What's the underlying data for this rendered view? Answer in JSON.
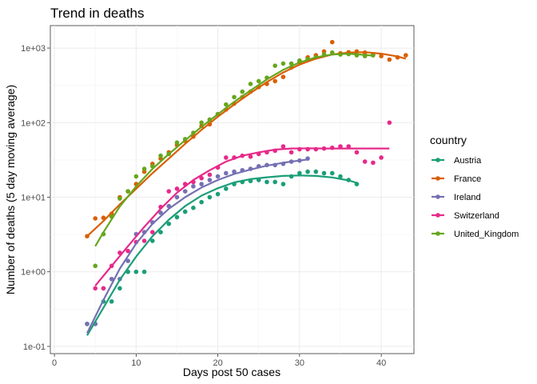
{
  "chart_data": {
    "type": "scatter",
    "title": "Trend in deaths",
    "xlabel": "Days post 50 cases",
    "ylabel": "Number of deaths (5 day moving average)",
    "xlim": [
      -0.5,
      44
    ],
    "ylim": [
      0.08,
      2000
    ],
    "y_scale": "log10",
    "x_ticks": [
      0,
      10,
      20,
      30,
      40
    ],
    "x_tick_labels": [
      "0",
      "10",
      "20",
      "30",
      "40"
    ],
    "y_ticks": [
      0.1,
      1,
      10,
      100,
      1000
    ],
    "y_tick_labels": [
      "1e-01",
      "1e+00",
      "1e+01",
      "1e+02",
      "1e+03"
    ],
    "grid": true,
    "legend_title": "country",
    "legend_position": "right",
    "series": [
      {
        "name": "Austria",
        "color": "#1b9e77",
        "points": [
          [
            4,
            0.2
          ],
          [
            5,
            0.2
          ],
          [
            6,
            0.4
          ],
          [
            7,
            0.4
          ],
          [
            8,
            0.6
          ],
          [
            9,
            1.0
          ],
          [
            10,
            1.0
          ],
          [
            11,
            1.0
          ],
          [
            12,
            2.6
          ],
          [
            13,
            3.4
          ],
          [
            14,
            4.4
          ],
          [
            15,
            5.4
          ],
          [
            16,
            6.4
          ],
          [
            17,
            7.2
          ],
          [
            18,
            8.6
          ],
          [
            19,
            10
          ],
          [
            20,
            11
          ],
          [
            21,
            13
          ],
          [
            22,
            15
          ],
          [
            23,
            16
          ],
          [
            24,
            16.5
          ],
          [
            25,
            17
          ],
          [
            26,
            16
          ],
          [
            27,
            16
          ],
          [
            28,
            15
          ],
          [
            29,
            19
          ],
          [
            30,
            21
          ],
          [
            31,
            22
          ],
          [
            32,
            22
          ],
          [
            33,
            21
          ],
          [
            34,
            21
          ],
          [
            35,
            19
          ],
          [
            36,
            17
          ],
          [
            37,
            15
          ]
        ],
        "trend": [
          [
            4,
            0.14
          ],
          [
            6,
            0.33
          ],
          [
            8,
            0.78
          ],
          [
            10,
            1.6
          ],
          [
            12,
            3.0
          ],
          [
            14,
            5.0
          ],
          [
            16,
            7.6
          ],
          [
            18,
            10.5
          ],
          [
            20,
            13.2
          ],
          [
            22,
            15.8
          ],
          [
            24,
            17.5
          ],
          [
            26,
            18.5
          ],
          [
            28,
            19.3
          ],
          [
            30,
            19.6
          ],
          [
            32,
            19.3
          ],
          [
            34,
            18.4
          ],
          [
            36,
            16.8
          ],
          [
            37,
            15.6
          ]
        ]
      },
      {
        "name": "France",
        "color": "#d95f02",
        "points": [
          [
            4,
            3.0
          ],
          [
            5,
            5.2
          ],
          [
            6,
            5.3
          ],
          [
            7,
            6.0
          ],
          [
            8,
            10
          ],
          [
            9,
            12
          ],
          [
            10,
            15
          ],
          [
            11,
            22
          ],
          [
            12,
            28
          ],
          [
            13,
            33
          ],
          [
            14,
            40
          ],
          [
            15,
            50
          ],
          [
            16,
            57
          ],
          [
            17,
            65
          ],
          [
            18,
            90
          ],
          [
            19,
            95
          ],
          [
            20,
            130
          ],
          [
            21,
            150
          ],
          [
            22,
            180
          ],
          [
            23,
            220
          ],
          [
            24,
            260
          ],
          [
            25,
            300
          ],
          [
            26,
            330
          ],
          [
            27,
            360
          ],
          [
            28,
            410
          ],
          [
            29,
            550
          ],
          [
            30,
            650
          ],
          [
            31,
            750
          ],
          [
            32,
            800
          ],
          [
            33,
            900
          ],
          [
            34,
            1200
          ],
          [
            35,
            850
          ],
          [
            36,
            880
          ],
          [
            37,
            900
          ],
          [
            38,
            870
          ],
          [
            39,
            820
          ],
          [
            40,
            780
          ],
          [
            41,
            700
          ],
          [
            42,
            750
          ],
          [
            43,
            800
          ]
        ],
        "trend": [
          [
            4,
            3.0
          ],
          [
            6,
            4.8
          ],
          [
            8,
            8.0
          ],
          [
            10,
            13
          ],
          [
            12,
            21
          ],
          [
            14,
            33
          ],
          [
            16,
            52
          ],
          [
            18,
            80
          ],
          [
            20,
            120
          ],
          [
            22,
            175
          ],
          [
            24,
            250
          ],
          [
            26,
            350
          ],
          [
            28,
            470
          ],
          [
            30,
            600
          ],
          [
            32,
            720
          ],
          [
            34,
            820
          ],
          [
            36,
            870
          ],
          [
            38,
            880
          ],
          [
            40,
            840
          ],
          [
            42,
            770
          ],
          [
            43,
            720
          ]
        ]
      },
      {
        "name": "Ireland",
        "color": "#7570b3",
        "points": [
          [
            4,
            0.2
          ],
          [
            5,
            0.2
          ],
          [
            6,
            0.6
          ],
          [
            7,
            0.8
          ],
          [
            8,
            0.8
          ],
          [
            9,
            1.4
          ],
          [
            10,
            3.2
          ],
          [
            11,
            3.4
          ],
          [
            12,
            4.6
          ],
          [
            13,
            6.2
          ],
          [
            14,
            7.6
          ],
          [
            15,
            10
          ],
          [
            16,
            12
          ],
          [
            17,
            14
          ],
          [
            18,
            15
          ],
          [
            19,
            17
          ],
          [
            20,
            19
          ],
          [
            21,
            21
          ],
          [
            22,
            22
          ],
          [
            23,
            23
          ],
          [
            24,
            24
          ],
          [
            25,
            26
          ],
          [
            26,
            27
          ],
          [
            27,
            27
          ],
          [
            28,
            28
          ],
          [
            29,
            30
          ],
          [
            30,
            31
          ],
          [
            31,
            33
          ]
        ],
        "trend": [
          [
            4,
            0.15
          ],
          [
            6,
            0.42
          ],
          [
            8,
            1.1
          ],
          [
            10,
            2.4
          ],
          [
            12,
            4.4
          ],
          [
            14,
            7.0
          ],
          [
            16,
            10
          ],
          [
            18,
            13.5
          ],
          [
            20,
            17
          ],
          [
            22,
            20.5
          ],
          [
            24,
            23.5
          ],
          [
            26,
            26.5
          ],
          [
            28,
            29
          ],
          [
            30,
            31
          ],
          [
            31,
            32
          ]
        ]
      },
      {
        "name": "Switzerland",
        "color": "#e7298a",
        "points": [
          [
            5,
            0.6
          ],
          [
            6,
            0.6
          ],
          [
            7,
            1.2
          ],
          [
            8,
            1.8
          ],
          [
            9,
            1.9
          ],
          [
            10,
            2.5
          ],
          [
            11,
            2.6
          ],
          [
            12,
            3.4
          ],
          [
            13,
            7.4
          ],
          [
            14,
            12
          ],
          [
            15,
            13
          ],
          [
            16,
            15
          ],
          [
            17,
            16
          ],
          [
            18,
            18
          ],
          [
            19,
            20
          ],
          [
            20,
            25
          ],
          [
            21,
            34
          ],
          [
            22,
            34
          ],
          [
            23,
            36
          ],
          [
            24,
            35
          ],
          [
            25,
            38
          ],
          [
            26,
            40
          ],
          [
            27,
            42
          ],
          [
            28,
            48
          ],
          [
            29,
            40
          ],
          [
            30,
            44
          ],
          [
            31,
            44
          ],
          [
            32,
            44
          ],
          [
            33,
            45
          ],
          [
            34,
            46
          ],
          [
            35,
            48
          ],
          [
            36,
            48
          ],
          [
            37,
            40
          ],
          [
            38,
            30
          ],
          [
            39,
            29
          ],
          [
            40,
            34
          ],
          [
            41,
            100
          ]
        ],
        "trend": [
          [
            5,
            0.65
          ],
          [
            7,
            1.2
          ],
          [
            9,
            2.2
          ],
          [
            11,
            4.0
          ],
          [
            13,
            7.0
          ],
          [
            15,
            11.5
          ],
          [
            17,
            17
          ],
          [
            19,
            23
          ],
          [
            21,
            30
          ],
          [
            23,
            36
          ],
          [
            25,
            40
          ],
          [
            27,
            43.5
          ],
          [
            29,
            45
          ],
          [
            31,
            45.2
          ],
          [
            33,
            45
          ],
          [
            35,
            45
          ],
          [
            37,
            45
          ],
          [
            39,
            45
          ],
          [
            41,
            45
          ]
        ]
      },
      {
        "name": "United_Kingdom",
        "color": "#66a61e",
        "points": [
          [
            5,
            1.2
          ],
          [
            6,
            3.2
          ],
          [
            7,
            5.5
          ],
          [
            8,
            9.6
          ],
          [
            9,
            12
          ],
          [
            10,
            19
          ],
          [
            11,
            24
          ],
          [
            12,
            26
          ],
          [
            13,
            36
          ],
          [
            14,
            38
          ],
          [
            15,
            54
          ],
          [
            16,
            60
          ],
          [
            17,
            73
          ],
          [
            18,
            100
          ],
          [
            19,
            110
          ],
          [
            20,
            130
          ],
          [
            21,
            175
          ],
          [
            22,
            220
          ],
          [
            23,
            260
          ],
          [
            24,
            330
          ],
          [
            25,
            360
          ],
          [
            26,
            400
          ],
          [
            27,
            580
          ],
          [
            28,
            620
          ],
          [
            29,
            620
          ],
          [
            30,
            680
          ],
          [
            31,
            710
          ],
          [
            32,
            750
          ],
          [
            33,
            820
          ],
          [
            34,
            870
          ],
          [
            35,
            820
          ],
          [
            36,
            830
          ],
          [
            37,
            800
          ],
          [
            38,
            780
          ],
          [
            39,
            800
          ]
        ],
        "trend": [
          [
            5,
            2.2
          ],
          [
            6,
            3.4
          ],
          [
            8,
            7.5
          ],
          [
            10,
            14
          ],
          [
            12,
            24
          ],
          [
            14,
            38
          ],
          [
            16,
            58
          ],
          [
            18,
            88
          ],
          [
            20,
            130
          ],
          [
            22,
            190
          ],
          [
            24,
            270
          ],
          [
            26,
            380
          ],
          [
            28,
            510
          ],
          [
            30,
            640
          ],
          [
            32,
            750
          ],
          [
            34,
            820
          ],
          [
            36,
            840
          ],
          [
            38,
            810
          ],
          [
            39,
            790
          ]
        ]
      }
    ]
  }
}
